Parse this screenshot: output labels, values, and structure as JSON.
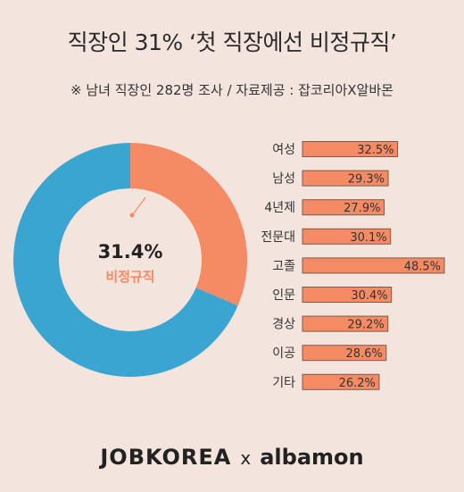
{
  "header": {
    "title": "직장인 31% ‘첫 직장에선  비정규직’",
    "subtitle": "※ 남녀 직장인 282명 조사 / 자료제공 : 잡코리아X알바몬"
  },
  "colors": {
    "accent": "#f48b64",
    "donut_rest": "#3aa5d1",
    "background": "#f3e4de",
    "bar_border": "#7a5a4a"
  },
  "chart_data": [
    {
      "type": "pie",
      "style": "donut",
      "slices": [
        {
          "label": "비정규직",
          "value": 31.4
        },
        {
          "label": "",
          "value": 68.6
        }
      ],
      "center_value": "31.4%",
      "center_label": "비정규직"
    },
    {
      "type": "bar",
      "orientation": "horizontal",
      "categories": [
        "여성",
        "남성",
        "4년제",
        "전문대",
        "고졸",
        "인문",
        "경상",
        "이공",
        "기타"
      ],
      "values": [
        32.5,
        29.3,
        27.9,
        30.1,
        48.5,
        30.4,
        29.2,
        28.6,
        26.2
      ],
      "value_labels": [
        "32.5%",
        "29.3%",
        "27.9%",
        "30.1%",
        "48.5%",
        "30.4%",
        "29.2%",
        "28.6%",
        "26.2%"
      ]
    }
  ],
  "footer": {
    "brand_left": "JOBKOREA",
    "separator": "x",
    "brand_right": "albamon"
  }
}
